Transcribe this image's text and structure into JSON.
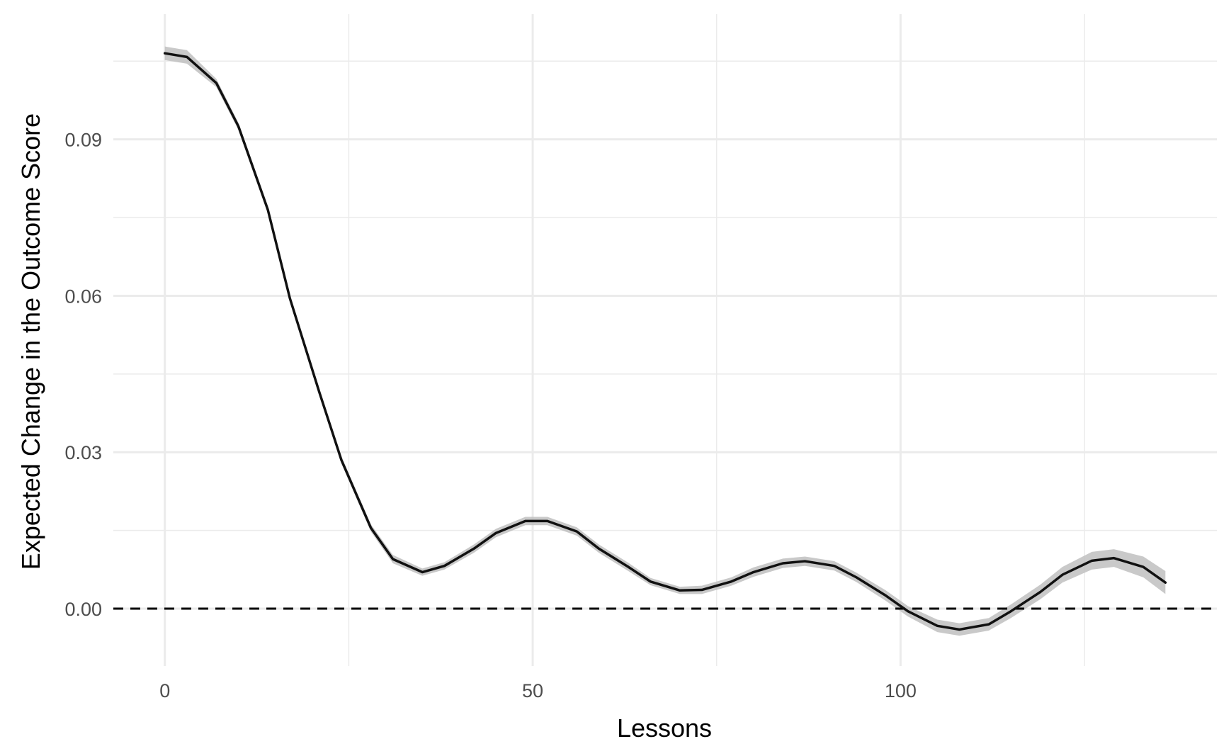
{
  "chart_data": {
    "type": "line",
    "title": "",
    "xlabel": "Lessons",
    "ylabel": "Expected Change in the Outcome Score",
    "xlim": [
      -7,
      143
    ],
    "ylim": [
      -0.011,
      0.114
    ],
    "x_ticks": [
      0,
      50,
      100
    ],
    "x_tick_labels": [
      "0",
      "50",
      "100"
    ],
    "y_ticks": [
      0.0,
      0.03,
      0.06,
      0.09
    ],
    "y_tick_labels": [
      "0.00",
      "0.03",
      "0.06",
      "0.09"
    ],
    "grid": true,
    "reference_line": {
      "y": 0,
      "style": "dashed",
      "color": "#000000"
    },
    "colors": {
      "line": "#111111",
      "ribbon": "#bfbfbf",
      "grid": "#ebebeb"
    },
    "series": [
      {
        "x": [
          0,
          3,
          7,
          10,
          14,
          17,
          21,
          24,
          28,
          31,
          35,
          38,
          42,
          45,
          49,
          52,
          56,
          59,
          63,
          66,
          70,
          73,
          77,
          80,
          84,
          87,
          91,
          94,
          98,
          101,
          105,
          108,
          112,
          115,
          119,
          122,
          126,
          129,
          133,
          136
        ],
        "y": [
          0.1065,
          0.1058,
          0.1008,
          0.0925,
          0.0765,
          0.0595,
          0.0415,
          0.0285,
          0.0155,
          0.0095,
          0.007,
          0.0082,
          0.0115,
          0.0145,
          0.0168,
          0.0168,
          0.0148,
          0.0115,
          0.008,
          0.0052,
          0.0035,
          0.0036,
          0.0052,
          0.007,
          0.0087,
          0.0091,
          0.0082,
          0.006,
          0.0025,
          -0.0005,
          -0.0033,
          -0.004,
          -0.003,
          -0.0005,
          0.0032,
          0.0065,
          0.0092,
          0.0097,
          0.008,
          0.005
        ],
        "lower": [
          0.1052,
          0.1045,
          0.1,
          0.0918,
          0.0758,
          0.0588,
          0.0408,
          0.0278,
          0.0148,
          0.0087,
          0.0063,
          0.0075,
          0.0107,
          0.0137,
          0.016,
          0.016,
          0.014,
          0.0107,
          0.0072,
          0.0045,
          0.0028,
          0.0028,
          0.0044,
          0.0061,
          0.0078,
          0.0082,
          0.0073,
          0.0051,
          0.0015,
          -0.0015,
          -0.0045,
          -0.0052,
          -0.0042,
          -0.0018,
          0.0018,
          0.005,
          0.0075,
          0.008,
          0.006,
          0.0028
        ],
        "upper": [
          0.1078,
          0.1071,
          0.1016,
          0.0932,
          0.0772,
          0.0602,
          0.0422,
          0.0292,
          0.0162,
          0.0103,
          0.0077,
          0.0089,
          0.0123,
          0.0153,
          0.0176,
          0.0176,
          0.0156,
          0.0123,
          0.0088,
          0.0059,
          0.0042,
          0.0044,
          0.006,
          0.0079,
          0.0096,
          0.01,
          0.0091,
          0.0069,
          0.0035,
          0.0005,
          -0.0021,
          -0.0028,
          -0.0018,
          0.0008,
          0.0046,
          0.008,
          0.0109,
          0.0114,
          0.01,
          0.0072
        ]
      }
    ]
  }
}
